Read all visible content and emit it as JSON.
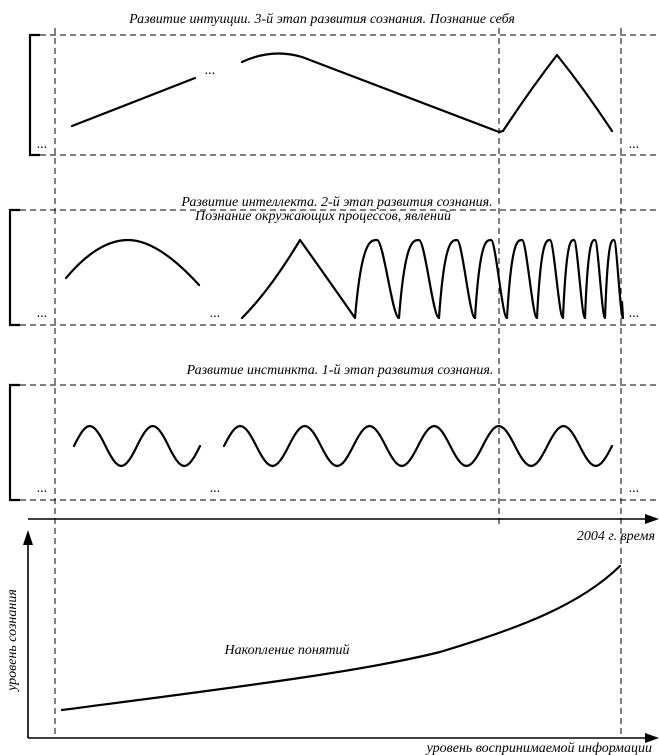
{
  "panels": {
    "intuition": {
      "title": "Развитие интуиции. 3-й этап развития сознания. Познание себя",
      "ellipsis": "..."
    },
    "intellect": {
      "title_line1": "Развитие интеллекта. 2-й этап развития сознания.",
      "title_line2": "Познание окружающих процессов, явлений",
      "ellipsis": "..."
    },
    "instinct": {
      "title": "Развитие инстинкта. 1-й этап развития сознания.",
      "ellipsis": "..."
    }
  },
  "timeline": {
    "label": "2004 г. время"
  },
  "lower_chart": {
    "y_axis_label": "уровень сознания",
    "x_axis_label": "уровень воспринимаемой информации",
    "curve_label": "Накопление понятий"
  }
}
